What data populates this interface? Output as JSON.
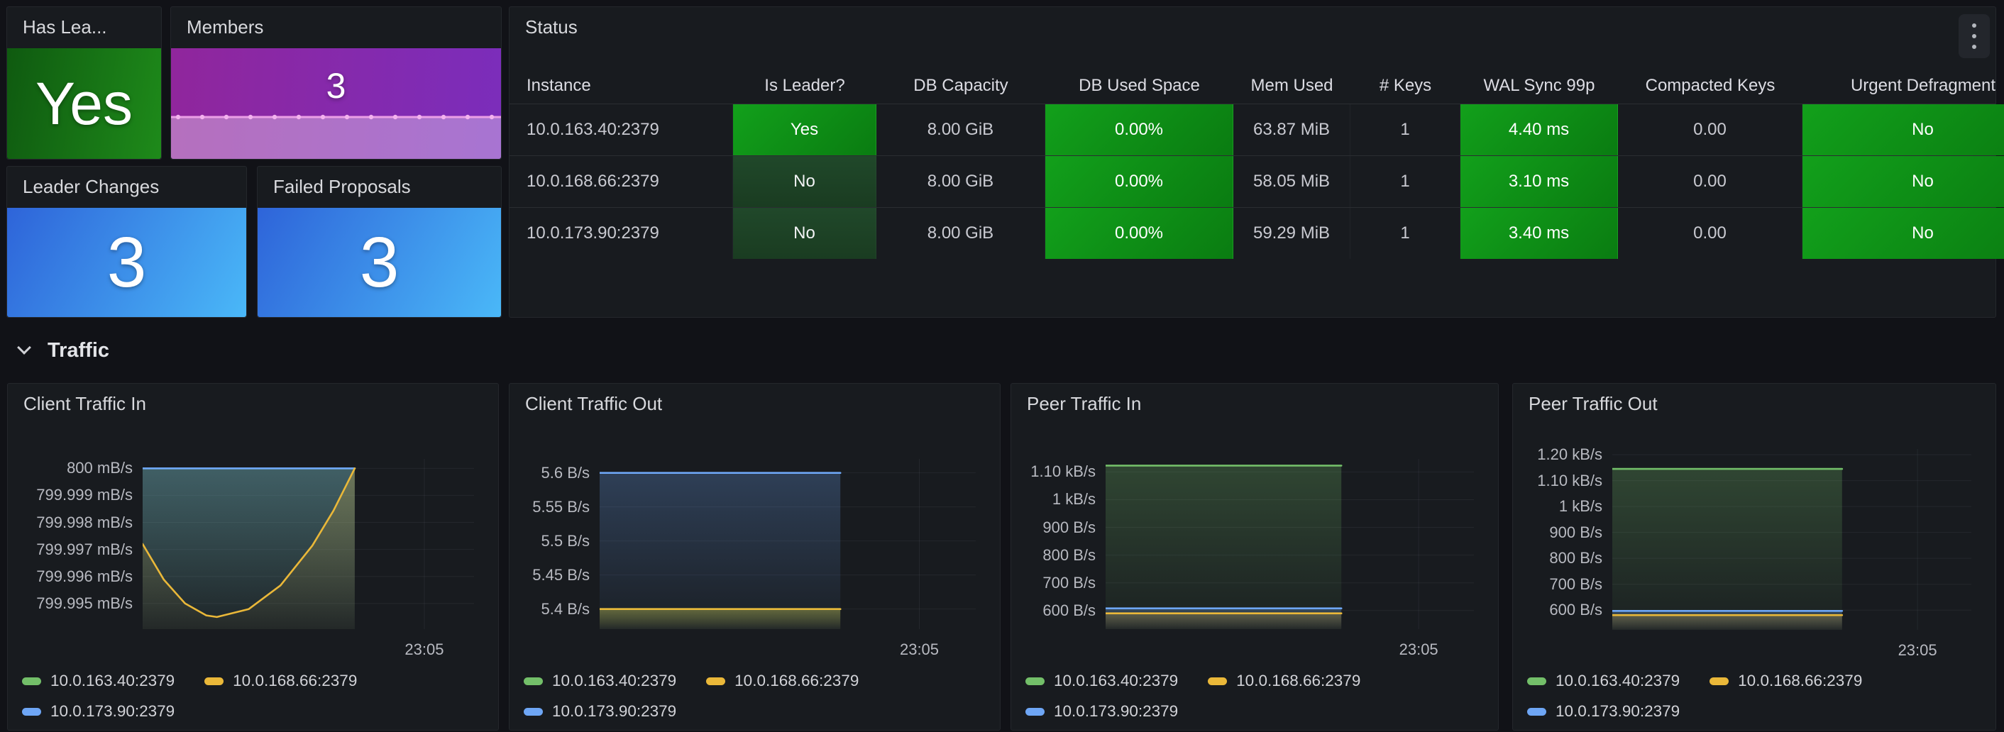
{
  "stat_panels": [
    {
      "title": "Has Lea...",
      "value": "Yes",
      "style": "green"
    },
    {
      "title": "Members",
      "value": "3",
      "style": "purple"
    },
    {
      "title": "Leader Changes",
      "value": "3",
      "style": "blue"
    },
    {
      "title": "Failed Proposals",
      "value": "3",
      "style": "blue"
    }
  ],
  "status_table": {
    "title": "Status",
    "columns": [
      {
        "label": "Instance",
        "align": "left",
        "cell": "plain"
      },
      {
        "label": "Is Leader?",
        "align": "center",
        "cell": "leader"
      },
      {
        "label": "DB Capacity",
        "align": "center",
        "cell": "plain"
      },
      {
        "label": "DB Used Space",
        "align": "center",
        "cell": "green"
      },
      {
        "label": "Mem Used",
        "align": "center",
        "cell": "plain"
      },
      {
        "label": "# Keys",
        "align": "center",
        "cell": "plain"
      },
      {
        "label": "WAL Sync 99p",
        "align": "center",
        "cell": "green"
      },
      {
        "label": "Compacted Keys",
        "align": "center",
        "cell": "plain"
      },
      {
        "label": "Urgent Defragment",
        "align": "center",
        "cell": "green"
      }
    ],
    "rows": [
      [
        "10.0.163.40:2379",
        "Yes",
        "8.00 GiB",
        "0.00%",
        "63.87 MiB",
        "1",
        "4.40 ms",
        "0.00",
        "No"
      ],
      [
        "10.0.168.66:2379",
        "No",
        "8.00 GiB",
        "0.00%",
        "58.05 MiB",
        "1",
        "3.10 ms",
        "0.00",
        "No"
      ],
      [
        "10.0.173.90:2379",
        "No",
        "8.00 GiB",
        "0.00%",
        "59.29 MiB",
        "1",
        "3.40 ms",
        "0.00",
        "No"
      ]
    ]
  },
  "section": {
    "title": "Traffic"
  },
  "legend": {
    "colors": {
      "10.0.163.40:2379": "#73bf69",
      "10.0.168.66:2379": "#eab839",
      "10.0.173.90:2379": "#6ea6f5"
    },
    "rows": [
      [
        "10.0.163.40:2379",
        "10.0.168.66:2379"
      ],
      [
        "10.0.173.90:2379"
      ]
    ]
  },
  "chart_data": [
    {
      "type": "area",
      "title": "Client Traffic In",
      "x_tick": "23:05",
      "ylim": [
        799.99405,
        800.00035
      ],
      "yticks": [
        {
          "label": "800 mB/s",
          "v": 800
        },
        {
          "label": "799.999 mB/s",
          "v": 799.999
        },
        {
          "label": "799.998 mB/s",
          "v": 799.998
        },
        {
          "label": "799.997 mB/s",
          "v": 799.997
        },
        {
          "label": "799.996 mB/s",
          "v": 799.996
        },
        {
          "label": "799.995 mB/s",
          "v": 799.995
        }
      ],
      "series": [
        {
          "name": "10.0.163.40:2379",
          "color": "#73bf69",
          "points": [
            [
              0,
              800
            ],
            [
              1,
              800
            ]
          ]
        },
        {
          "name": "10.0.173.90:2379",
          "color": "#6ea6f5",
          "points": [
            [
              0,
              800
            ],
            [
              1,
              800
            ]
          ]
        },
        {
          "name": "10.0.168.66:2379",
          "color": "#eab839",
          "points": [
            [
              0,
              799.9972
            ],
            [
              0.1,
              799.99588
            ],
            [
              0.2,
              799.995
            ],
            [
              0.3,
              799.99456
            ],
            [
              0.35,
              799.9945
            ],
            [
              0.5,
              799.99479
            ],
            [
              0.65,
              799.99567
            ],
            [
              0.8,
              799.99714
            ],
            [
              0.9,
              799.99844
            ],
            [
              1,
              800
            ]
          ]
        }
      ]
    },
    {
      "type": "area",
      "title": "Client Traffic Out",
      "x_tick": "23:05",
      "ylim": [
        5.3705,
        5.6205
      ],
      "yticks": [
        {
          "label": "5.6 B/s",
          "v": 5.6
        },
        {
          "label": "5.55 B/s",
          "v": 5.55
        },
        {
          "label": "5.5 B/s",
          "v": 5.5
        },
        {
          "label": "5.45 B/s",
          "v": 5.45
        },
        {
          "label": "5.4 B/s",
          "v": 5.4
        }
      ],
      "series": [
        {
          "name": "10.0.163.40:2379",
          "color": "#73bf69",
          "points": [
            [
              0,
              5.4
            ],
            [
              1,
              5.4
            ]
          ]
        },
        {
          "name": "10.0.173.90:2379",
          "color": "#6ea6f5",
          "points": [
            [
              0,
              5.6
            ],
            [
              1,
              5.6
            ]
          ]
        },
        {
          "name": "10.0.168.66:2379",
          "color": "#eab839",
          "points": [
            [
              0,
              5.4
            ],
            [
              1,
              5.4
            ]
          ]
        }
      ]
    },
    {
      "type": "area",
      "title": "Peer Traffic In",
      "x_tick": "23:05",
      "ylim": [
        533,
        1147
      ],
      "yticks": [
        {
          "label": "1.10 kB/s",
          "v": 1100
        },
        {
          "label": "1 kB/s",
          "v": 1000
        },
        {
          "label": "900 B/s",
          "v": 900
        },
        {
          "label": "800 B/s",
          "v": 800
        },
        {
          "label": "700 B/s",
          "v": 700
        },
        {
          "label": "600 B/s",
          "v": 600
        }
      ],
      "series": [
        {
          "name": "10.0.163.40:2379",
          "color": "#73bf69",
          "points": [
            [
              0,
              1123
            ],
            [
              1,
              1123
            ]
          ]
        },
        {
          "name": "10.0.173.90:2379",
          "color": "#6ea6f5",
          "points": [
            [
              0,
              608
            ],
            [
              1,
              608
            ]
          ]
        },
        {
          "name": "10.0.168.66:2379",
          "color": "#eab839",
          "points": [
            [
              0,
              590
            ],
            [
              1,
              590
            ]
          ]
        }
      ]
    },
    {
      "type": "area",
      "title": "Peer Traffic Out",
      "x_tick": "23:05",
      "ylim": [
        524,
        1222
      ],
      "yticks": [
        {
          "label": "1.20 kB/s",
          "v": 1200
        },
        {
          "label": "1.10 kB/s",
          "v": 1100
        },
        {
          "label": "1 kB/s",
          "v": 1000
        },
        {
          "label": "900 B/s",
          "v": 900
        },
        {
          "label": "800 B/s",
          "v": 800
        },
        {
          "label": "700 B/s",
          "v": 700
        },
        {
          "label": "600 B/s",
          "v": 600
        }
      ],
      "series": [
        {
          "name": "10.0.163.40:2379",
          "color": "#73bf69",
          "points": [
            [
              0,
              1145
            ],
            [
              1,
              1145
            ]
          ]
        },
        {
          "name": "10.0.173.90:2379",
          "color": "#6ea6f5",
          "points": [
            [
              0,
              597
            ],
            [
              1,
              597
            ]
          ]
        },
        {
          "name": "10.0.168.66:2379",
          "color": "#eab839",
          "points": [
            [
              0,
              581
            ],
            [
              1,
              581
            ]
          ]
        }
      ]
    }
  ],
  "members_sparkline": {
    "value": 3,
    "flat": true
  }
}
